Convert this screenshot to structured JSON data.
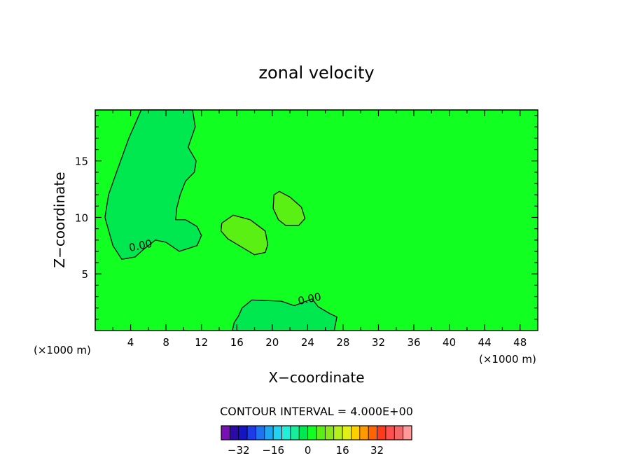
{
  "chart_data": {
    "type": "heatmap",
    "title": "zonal velocity",
    "xlabel": "X−coordinate",
    "ylabel": "Z−coordinate",
    "x_unit_label": "(×1000 m)",
    "x_unit_label_right": "(×1000 m)",
    "xlim": [
      0,
      50
    ],
    "ylim": [
      0,
      19.5
    ],
    "x_ticks": [
      4,
      8,
      12,
      16,
      20,
      24,
      28,
      32,
      36,
      40,
      44,
      48
    ],
    "y_ticks": [
      5,
      10,
      15
    ],
    "contour_interval_text": "CONTOUR INTERVAL = 4.000E+00",
    "contour_labels": [
      {
        "text": "0.00",
        "x": 5.2,
        "z": 7.2
      },
      {
        "text": "0.00",
        "x": 24.3,
        "z": 2.5
      }
    ],
    "background_value": 0,
    "regions": [
      {
        "name": "upper-left negative cell",
        "value": -4,
        "points": [
          [
            5.2,
            19.5
          ],
          [
            11,
            19.5
          ],
          [
            11.3,
            18
          ],
          [
            10.5,
            16.2
          ],
          [
            11.4,
            15
          ],
          [
            11.2,
            14
          ],
          [
            10.2,
            13.2
          ],
          [
            9.6,
            12
          ],
          [
            9.2,
            10.8
          ],
          [
            9.1,
            9.8
          ],
          [
            10.2,
            9.8
          ],
          [
            11.5,
            9.2
          ],
          [
            12,
            8.4
          ],
          [
            11.5,
            7.5
          ],
          [
            9.5,
            7
          ],
          [
            8,
            7.8
          ],
          [
            6.8,
            8
          ],
          [
            5.5,
            7.2
          ],
          [
            4.5,
            6.5
          ],
          [
            3,
            6.3
          ],
          [
            2,
            7.5
          ],
          [
            1.1,
            10
          ],
          [
            1.5,
            12
          ],
          [
            2.5,
            14.2
          ],
          [
            3.8,
            17
          ]
        ]
      },
      {
        "name": "mid positive cell",
        "value": 4,
        "points": [
          [
            14.3,
            9.5
          ],
          [
            15.6,
            10.2
          ],
          [
            17.5,
            9.8
          ],
          [
            19.2,
            8.8
          ],
          [
            19.5,
            7.6
          ],
          [
            19.2,
            6.9
          ],
          [
            18,
            6.7
          ],
          [
            16.5,
            7.4
          ],
          [
            15,
            8.1
          ],
          [
            14.2,
            8.8
          ]
        ]
      },
      {
        "name": "upper positive cell",
        "value": 4,
        "points": [
          [
            20.2,
            12
          ],
          [
            20.8,
            12.3
          ],
          [
            22,
            11.8
          ],
          [
            23.3,
            10.9
          ],
          [
            23.7,
            9.9
          ],
          [
            23,
            9.3
          ],
          [
            21.5,
            9.3
          ],
          [
            20.7,
            9.8
          ],
          [
            20.1,
            10.8
          ]
        ]
      },
      {
        "name": "low negative cell",
        "value": -4,
        "points": [
          [
            16.6,
            2
          ],
          [
            17.7,
            2.7
          ],
          [
            21,
            2.6
          ],
          [
            22.5,
            2.2
          ],
          [
            24.5,
            2.8
          ],
          [
            25.2,
            2.1
          ],
          [
            26.5,
            1.5
          ],
          [
            27.3,
            1.2
          ],
          [
            27.1,
            0.4
          ],
          [
            27,
            0
          ],
          [
            15.5,
            0
          ],
          [
            15.7,
            0.7
          ],
          [
            16.2,
            1.3
          ]
        ]
      }
    ],
    "colorbar": {
      "ticks": [
        -32,
        -16,
        0,
        16,
        32
      ],
      "tick_labels": [
        "−32",
        "−16",
        "0",
        "16",
        "32"
      ],
      "levels": [
        -36,
        -32,
        -28,
        -24,
        -20,
        -16,
        -12,
        -8,
        -4,
        0,
        4,
        8,
        12,
        16,
        20,
        24,
        28,
        32,
        36
      ],
      "colors": [
        "#7a0fb5",
        "#2a0aa8",
        "#1414c2",
        "#1c3ce6",
        "#1c74ee",
        "#1ea6f0",
        "#22d2f2",
        "#20f0d8",
        "#16ee9c",
        "#00e850",
        "#12ff22",
        "#5af014",
        "#8ae81a",
        "#b4f01a",
        "#e0f014",
        "#ffd000",
        "#ff9a00",
        "#ff6400",
        "#ff3a1a",
        "#ff5050",
        "#f26868",
        "#ff9a9a"
      ]
    },
    "grid": false,
    "legend": "bottom"
  }
}
